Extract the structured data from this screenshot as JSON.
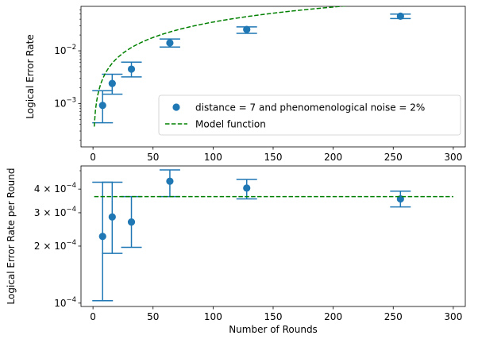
{
  "chart_data": [
    {
      "type": "scatter",
      "panel": "top",
      "title": "",
      "xlabel": "",
      "ylabel": "Logical Error Rate",
      "xscale": "linear",
      "yscale": "log",
      "xlim": [
        -10,
        310
      ],
      "ylim": [
        0.00015,
        0.07
      ],
      "xticks": [
        0,
        50,
        100,
        150,
        200,
        250,
        300
      ],
      "xtick_labels": [
        "0",
        "50",
        "100",
        "150",
        "200",
        "250",
        "300"
      ],
      "yticks": [
        0.001,
        0.01
      ],
      "ytick_labels": [
        {
          "base": "10",
          "exp": "−3"
        },
        {
          "base": "10",
          "exp": "−2"
        }
      ],
      "grid": false,
      "legend": "lower right",
      "series": [
        {
          "name": "distance = 7 and phenomenological noise = 2%",
          "kind": "points",
          "color": "#1f77b4",
          "x": [
            8,
            16,
            32,
            64,
            128,
            256
          ],
          "y": [
            0.00092,
            0.0024,
            0.0045,
            0.0142,
            0.0255,
            0.0455
          ],
          "y_err_low": [
            0.00043,
            0.0015,
            0.0032,
            0.0118,
            0.0215,
            0.041
          ],
          "y_err_high": [
            0.00175,
            0.0036,
            0.0061,
            0.0168,
            0.0285,
            0.05
          ]
        },
        {
          "name": "Model function",
          "kind": "dashed-line",
          "color": "#008000",
          "x_range": [
            1,
            300
          ],
          "rate_per_round": 0.000365
        }
      ]
    },
    {
      "type": "scatter",
      "panel": "bottom",
      "title": "",
      "xlabel": "Number of Rounds",
      "ylabel": "Logical Error Rate per Round",
      "xscale": "linear",
      "yscale": "log",
      "xlim": [
        -10,
        310
      ],
      "ylim": [
        9.6e-05,
        0.00053
      ],
      "xticks": [
        0,
        50,
        100,
        150,
        200,
        250,
        300
      ],
      "xtick_labels": [
        "0",
        "50",
        "100",
        "150",
        "200",
        "250",
        "300"
      ],
      "yticks": [
        0.0001,
        0.0002,
        0.0003,
        0.0004
      ],
      "ytick_labels": [
        {
          "coef": "1",
          "base": "10",
          "exp": "−4",
          "bare": true
        },
        {
          "coef": "2",
          "base": "10",
          "exp": "−4",
          "bare": false
        },
        {
          "coef": "3",
          "base": "10",
          "exp": "−4",
          "bare": false
        },
        {
          "coef": "4",
          "base": "10",
          "exp": "−4",
          "bare": false
        }
      ],
      "grid": false,
      "legend": "none",
      "series": [
        {
          "kind": "points",
          "color": "#1f77b4",
          "x": [
            8,
            16,
            32,
            64,
            128,
            256
          ],
          "y": [
            0.000225,
            0.000285,
            0.000268,
            0.00044,
            0.000405,
            0.000355
          ],
          "y_err_low": [
            0.000103,
            0.000183,
            0.000197,
            0.000365,
            0.000355,
            0.000322
          ],
          "y_err_high": [
            0.000435,
            0.000435,
            0.000365,
            0.000505,
            0.00045,
            0.00039
          ]
        },
        {
          "kind": "dashed-line",
          "color": "#008000",
          "x_range": [
            1,
            300
          ],
          "value": 0.000365
        }
      ]
    }
  ]
}
